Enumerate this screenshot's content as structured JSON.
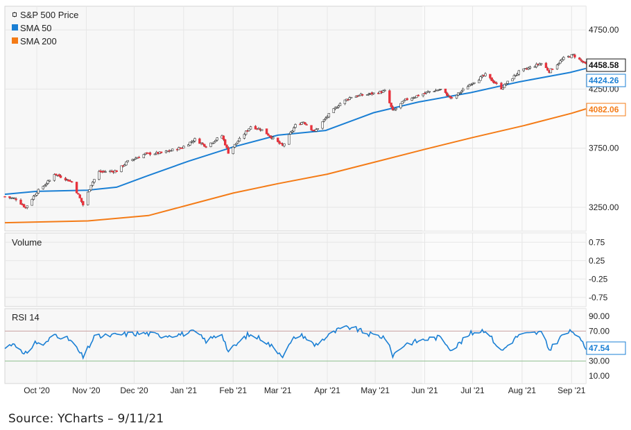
{
  "source_note": "Source: YCharts – 9/11/21",
  "colors": {
    "up_candle": "#ffffff",
    "down_candle": "#e8323c",
    "candle_outline": "#333333",
    "sma50": "#1a7fd4",
    "sma200": "#f47b16",
    "rsi": "#1a7fd4",
    "rsi_upper_band": "#c9a0a0",
    "rsi_lower_band": "#8fbf8f",
    "last_price_badge": "#111111"
  },
  "chart_data": [
    {
      "panel": "price",
      "type": "candlestick",
      "legend": [
        {
          "label": "S&P 500 Price",
          "icon": "candlestick-icon"
        },
        {
          "label": "SMA 50",
          "color": "#1a7fd4"
        },
        {
          "label": "SMA 200",
          "color": "#f47b16"
        }
      ],
      "y_axis": {
        "position": "right",
        "ticks": [
          3250,
          3750,
          4250,
          4750
        ],
        "tick_labels": [
          "3250.00",
          "3750.00",
          "4250.00",
          "4750.00"
        ],
        "range": [
          3050,
          4950
        ]
      },
      "x_axis": {
        "start": "2020-09-11",
        "end": "2021-09-10",
        "tick_labels": [
          "Oct '20",
          "Nov '20",
          "Dec '20",
          "Jan '21",
          "Feb '21",
          "Mar '21",
          "Apr '21",
          "May '21",
          "Jun '21",
          "Jul '21",
          "Aug '21",
          "Sep '21"
        ]
      },
      "last_values": [
        {
          "series": "S&P 500 Price",
          "value": "4458.58",
          "color": "#111111"
        },
        {
          "series": "SMA 50",
          "value": "4424.26",
          "color": "#1a7fd4"
        },
        {
          "series": "SMA 200",
          "value": "4082.06",
          "color": "#f47b16"
        }
      ],
      "series": [
        {
          "name": "S&P 500 Price",
          "points": [
            [
              "2020-09-11",
              3341
            ],
            [
              "2020-09-18",
              3320
            ],
            [
              "2020-09-24",
              3247
            ],
            [
              "2020-10-01",
              3380
            ],
            [
              "2020-10-09",
              3477
            ],
            [
              "2020-10-12",
              3534
            ],
            [
              "2020-10-23",
              3465
            ],
            [
              "2020-10-30",
              3270
            ],
            [
              "2020-11-04",
              3443
            ],
            [
              "2020-11-09",
              3550
            ],
            [
              "2020-11-20",
              3557
            ],
            [
              "2020-11-27",
              3638
            ],
            [
              "2020-12-08",
              3702
            ],
            [
              "2020-12-18",
              3709
            ],
            [
              "2020-12-31",
              3756
            ],
            [
              "2021-01-08",
              3824
            ],
            [
              "2021-01-15",
              3768
            ],
            [
              "2021-01-25",
              3855
            ],
            [
              "2021-01-29",
              3714
            ],
            [
              "2021-02-12",
              3934
            ],
            [
              "2021-02-19",
              3906
            ],
            [
              "2021-03-04",
              3768
            ],
            [
              "2021-03-12",
              3943
            ],
            [
              "2021-03-17",
              3974
            ],
            [
              "2021-03-24",
              3889
            ],
            [
              "2021-04-01",
              4020
            ],
            [
              "2021-04-09",
              4129
            ],
            [
              "2021-04-16",
              4185
            ],
            [
              "2021-04-29",
              4211
            ],
            [
              "2021-05-07",
              4232
            ],
            [
              "2021-05-12",
              4063
            ],
            [
              "2021-05-20",
              4159
            ],
            [
              "2021-06-04",
              4229
            ],
            [
              "2021-06-11",
              4247
            ],
            [
              "2021-06-18",
              4166
            ],
            [
              "2021-06-30",
              4298
            ],
            [
              "2021-07-09",
              4369
            ],
            [
              "2021-07-19",
              4258
            ],
            [
              "2021-07-30",
              4395
            ],
            [
              "2021-08-13",
              4468
            ],
            [
              "2021-08-18",
              4400
            ],
            [
              "2021-08-27",
              4509
            ],
            [
              "2021-09-02",
              4537
            ],
            [
              "2021-09-10",
              4458.58
            ]
          ]
        },
        {
          "name": "SMA 50",
          "points": [
            [
              "2020-09-11",
              3360
            ],
            [
              "2020-10-01",
              3385
            ],
            [
              "2020-11-02",
              3395
            ],
            [
              "2020-11-20",
              3420
            ],
            [
              "2020-12-10",
              3520
            ],
            [
              "2021-01-04",
              3640
            ],
            [
              "2021-02-01",
              3760
            ],
            [
              "2021-03-01",
              3860
            ],
            [
              "2021-03-31",
              3900
            ],
            [
              "2021-04-30",
              4050
            ],
            [
              "2021-05-28",
              4140
            ],
            [
              "2021-06-30",
              4220
            ],
            [
              "2021-07-30",
              4310
            ],
            [
              "2021-08-31",
              4390
            ],
            [
              "2021-09-10",
              4424.26
            ]
          ]
        },
        {
          "name": "SMA 200",
          "points": [
            [
              "2020-09-11",
              3120
            ],
            [
              "2020-11-02",
              3135
            ],
            [
              "2020-12-10",
              3180
            ],
            [
              "2021-01-04",
              3270
            ],
            [
              "2021-02-01",
              3370
            ],
            [
              "2021-03-01",
              3450
            ],
            [
              "2021-04-01",
              3530
            ],
            [
              "2021-05-03",
              3640
            ],
            [
              "2021-06-01",
              3740
            ],
            [
              "2021-07-01",
              3840
            ],
            [
              "2021-08-02",
              3940
            ],
            [
              "2021-09-01",
              4045
            ],
            [
              "2021-09-10",
              4082.06
            ]
          ]
        }
      ]
    },
    {
      "panel": "volume",
      "type": "bar",
      "title": "Volume",
      "y_axis": {
        "position": "right",
        "ticks": [
          0.75,
          0.25,
          -0.25,
          -0.75
        ],
        "tick_labels": [
          "0.75",
          "0.25",
          "-0.25",
          "-0.75"
        ]
      },
      "series": []
    },
    {
      "panel": "rsi",
      "type": "line",
      "title": "RSI 14",
      "y_axis": {
        "position": "right",
        "ticks": [
          90,
          70,
          50,
          30,
          10
        ],
        "tick_labels": [
          "90.00",
          "70.00",
          "",
          "30.00",
          "10.00"
        ],
        "range": [
          0,
          100
        ]
      },
      "bands": [
        70,
        30
      ],
      "last_value": "47.54",
      "series": [
        {
          "name": "RSI 14",
          "points": [
            [
              "2020-09-11",
              47
            ],
            [
              "2020-09-17",
              55
            ],
            [
              "2020-09-23",
              37
            ],
            [
              "2020-09-30",
              55
            ],
            [
              "2020-10-06",
              52
            ],
            [
              "2020-10-12",
              66
            ],
            [
              "2020-10-22",
              58
            ],
            [
              "2020-10-30",
              35
            ],
            [
              "2020-11-06",
              62
            ],
            [
              "2020-11-16",
              64
            ],
            [
              "2020-11-25",
              66
            ],
            [
              "2020-12-08",
              67
            ],
            [
              "2020-12-18",
              64
            ],
            [
              "2020-12-31",
              66
            ],
            [
              "2021-01-08",
              69
            ],
            [
              "2021-01-15",
              57
            ],
            [
              "2021-01-25",
              67
            ],
            [
              "2021-01-29",
              42
            ],
            [
              "2021-02-10",
              65
            ],
            [
              "2021-02-19",
              60
            ],
            [
              "2021-03-04",
              38
            ],
            [
              "2021-03-12",
              63
            ],
            [
              "2021-03-17",
              64
            ],
            [
              "2021-03-24",
              51
            ],
            [
              "2021-04-01",
              63
            ],
            [
              "2021-04-09",
              73
            ],
            [
              "2021-04-16",
              75
            ],
            [
              "2021-04-27",
              66
            ],
            [
              "2021-05-07",
              62
            ],
            [
              "2021-05-12",
              38
            ],
            [
              "2021-05-20",
              53
            ],
            [
              "2021-06-04",
              60
            ],
            [
              "2021-06-11",
              62
            ],
            [
              "2021-06-18",
              45
            ],
            [
              "2021-06-30",
              67
            ],
            [
              "2021-07-09",
              72
            ],
            [
              "2021-07-19",
              43
            ],
            [
              "2021-07-30",
              65
            ],
            [
              "2021-08-13",
              68
            ],
            [
              "2021-08-18",
              45
            ],
            [
              "2021-08-27",
              66
            ],
            [
              "2021-09-02",
              70
            ],
            [
              "2021-09-10",
              47.54
            ]
          ]
        }
      ]
    }
  ]
}
